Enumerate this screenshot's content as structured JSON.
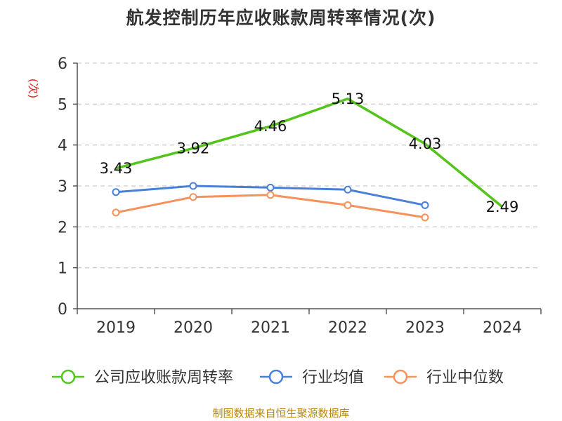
{
  "chart_data": {
    "type": "line",
    "title": "航发控制历年应收账款周转率情况(次)",
    "ylabel": "(次)",
    "xlabel": "",
    "ylim": [
      0,
      6
    ],
    "yticks": [
      0,
      1,
      2,
      3,
      4,
      5,
      6
    ],
    "grid": true,
    "legend_position": "bottom",
    "categories": [
      "2019",
      "2020",
      "2021",
      "2022",
      "2023",
      "2024"
    ],
    "series": [
      {
        "name": "公司应收账款周转率",
        "color": "#52c41a",
        "values": [
          3.43,
          3.92,
          4.46,
          5.13,
          4.03,
          2.49
        ],
        "show_labels": true,
        "markers": false
      },
      {
        "name": "行业均值",
        "color": "#4a7fd9",
        "values": [
          2.85,
          3.0,
          2.96,
          2.91,
          2.53,
          null
        ],
        "show_labels": false,
        "markers": true
      },
      {
        "name": "行业中位数",
        "color": "#f5915a",
        "values": [
          2.35,
          2.73,
          2.78,
          2.53,
          2.23,
          null
        ],
        "show_labels": false,
        "markers": true
      }
    ]
  },
  "source": "制图数据来自恒生聚源数据库"
}
